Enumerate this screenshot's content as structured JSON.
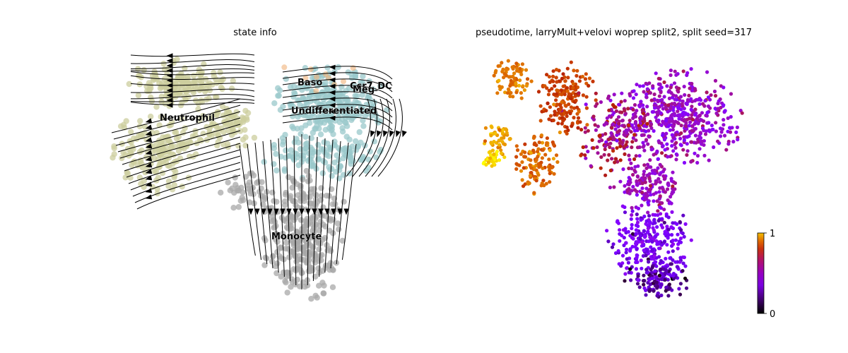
{
  "figure": {
    "left_title": "state info",
    "right_title": "pseudotime, larryMult+velovi woprep split2, split seed=317"
  },
  "chart_data": [
    {
      "type": "scatter",
      "subtype": "embedding-with-velocity-streamlines",
      "title": "state info",
      "axes_visible": false,
      "grid": false,
      "legend": "on-data labels",
      "categories": [
        {
          "name": "Baso",
          "color": "#99c8cb"
        },
        {
          "name": "Ccr7_DC",
          "label": "Ccr7_DC",
          "color": "#99c8cb"
        },
        {
          "name": "Meg",
          "color": "#99c8cb"
        },
        {
          "name": "Undifferentiated",
          "color": "#99c8cb"
        },
        {
          "name": "Neutrophil",
          "color": "#cccd9e"
        },
        {
          "name": "Monocyte",
          "color": "#a8a8a8"
        }
      ],
      "point_colors": {
        "Baso": "#99c8cb",
        "Neutrophil": "#cccd9e",
        "Monocyte": "#a8a8a8",
        "accent_orange": "#f0b27a"
      },
      "streamline_color": "#000000"
    },
    {
      "type": "scatter",
      "subtype": "embedding-continuous",
      "title": "pseudotime, larryMult+velovi woprep split2, split seed=317",
      "axes_visible": false,
      "grid": false,
      "colormap": "gnuplot",
      "colorbar": {
        "min": 0,
        "max": 1,
        "ticks": [
          "0",
          "1"
        ],
        "placement": "right"
      }
    }
  ]
}
